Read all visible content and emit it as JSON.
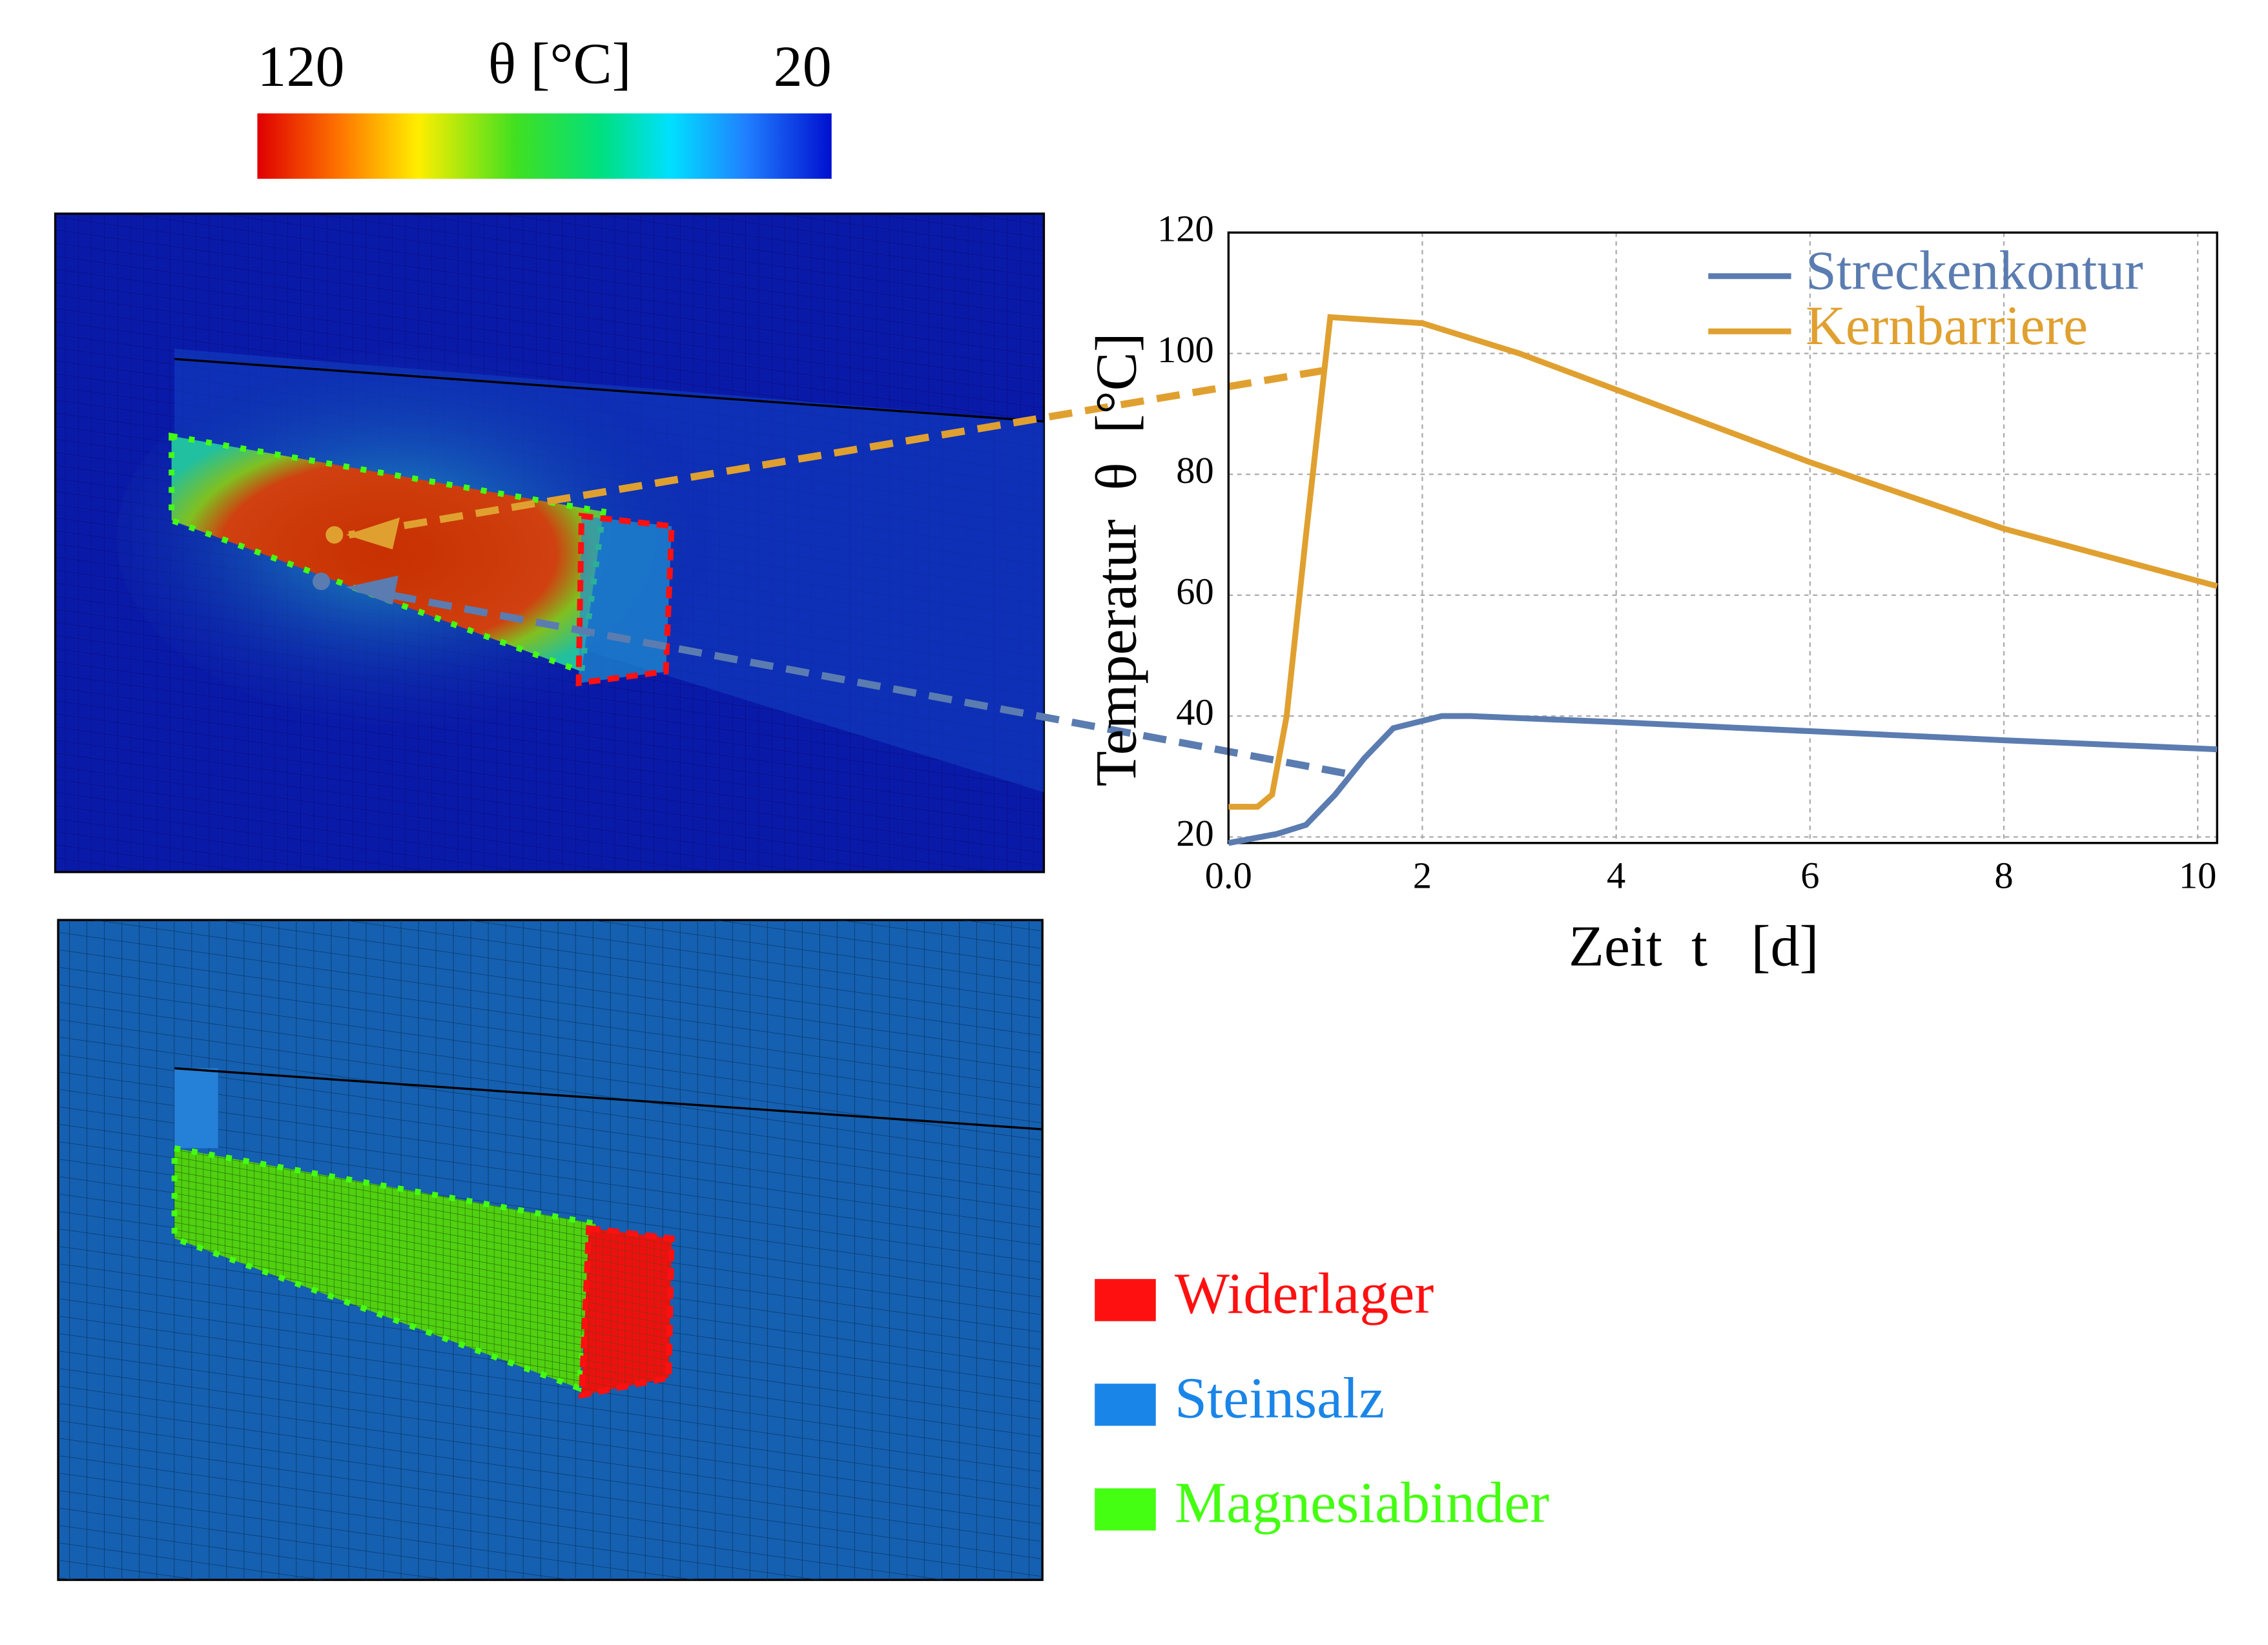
{
  "chart_data": {
    "type": "line",
    "xlabel": "Zeit  t   [d]",
    "ylabel": "Temperatur  θ  [°C]",
    "xlim": [
      0,
      10.2
    ],
    "ylim": [
      19,
      120
    ],
    "xticks": [
      {
        "value": 0,
        "label": "0.0"
      },
      2,
      4,
      6,
      8,
      10
    ],
    "yticks": [
      20,
      40,
      60,
      80,
      100,
      120
    ],
    "grid": true,
    "legend": "upper right",
    "series": [
      {
        "name": "Streckenkontur",
        "color": "#5b7cb0",
        "x": [
          0,
          0.5,
          0.8,
          1.1,
          1.4,
          1.7,
          2.2,
          2.5,
          4,
          6,
          8,
          10.2
        ],
        "values": [
          19,
          20.5,
          22,
          27,
          33,
          38,
          40,
          40,
          39,
          37.5,
          36,
          34.5
        ]
      },
      {
        "name": "Kernbarriere",
        "color": "#e0a030",
        "x": [
          0,
          0.3,
          0.45,
          0.6,
          0.8,
          1.05,
          2,
          3,
          4.5,
          6,
          8,
          10.2
        ],
        "values": [
          25,
          25,
          27,
          40,
          70,
          106,
          105,
          100,
          91,
          82,
          71,
          61.5
        ]
      }
    ]
  },
  "colorbar": {
    "label": "θ  [°C]",
    "ticks": [
      120,
      20
    ]
  },
  "material_legend": {
    "items": [
      {
        "name": "Widerlager",
        "color": "#ff1010"
      },
      {
        "name": "Steinsalz",
        "color": "#1a85e8"
      },
      {
        "name": "Magnesiabinder",
        "color": "#44ff11"
      }
    ]
  }
}
